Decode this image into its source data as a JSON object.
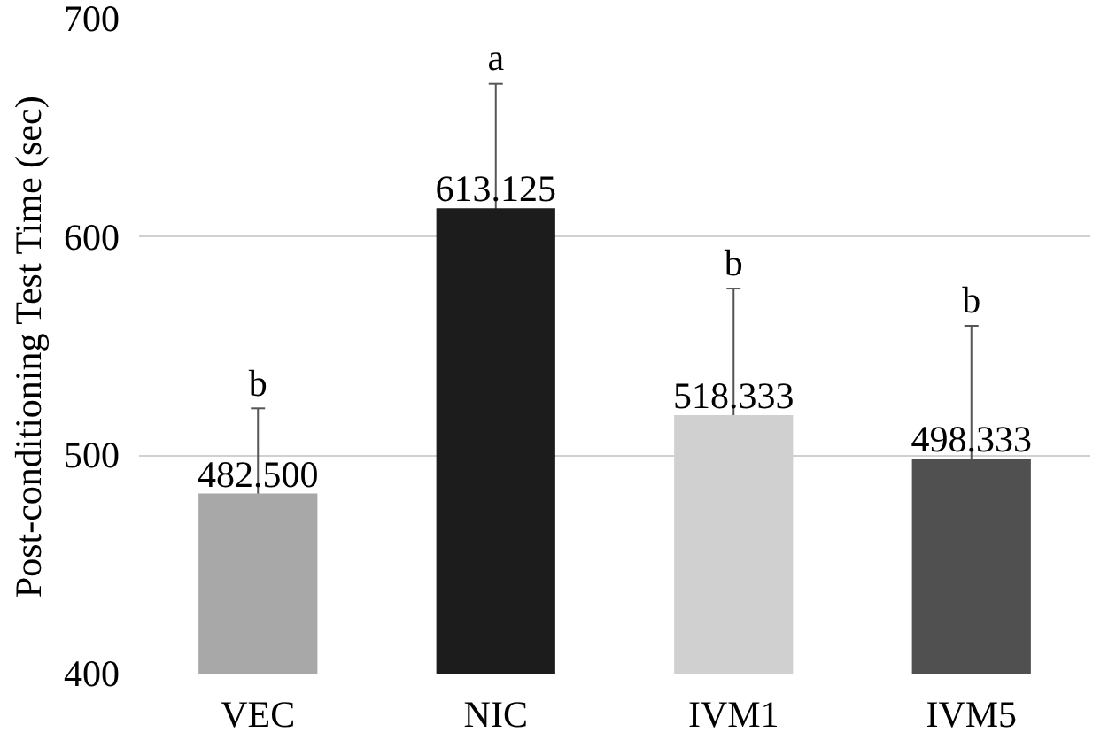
{
  "chart_data": {
    "type": "bar",
    "ylabel": "Post-conditioning Test Time (sec)",
    "categories": [
      "VEC",
      "NIC",
      "IVM1",
      "IVM5"
    ],
    "values": [
      482.5,
      613.125,
      518.333,
      498.333
    ],
    "errors": [
      39,
      57,
      58,
      61
    ],
    "colors": [
      "#a8a8a8",
      "#1c1c1c",
      "#d0d0d0",
      "#505050"
    ],
    "value_labels": [
      "482.500",
      "613.125",
      "518.333",
      "498.333"
    ],
    "ylim": [
      400,
      700
    ],
    "yticks": [
      400,
      500,
      600,
      700
    ],
    "grid": "y",
    "annotations": [
      {
        "text": "b",
        "x": "VEC",
        "y": 521
      },
      {
        "text": "a",
        "x": "NIC",
        "y": 670
      },
      {
        "text": "b",
        "x": "IVM1",
        "y": 576
      },
      {
        "text": "b",
        "x": "IVM5",
        "y": 559
      }
    ]
  }
}
